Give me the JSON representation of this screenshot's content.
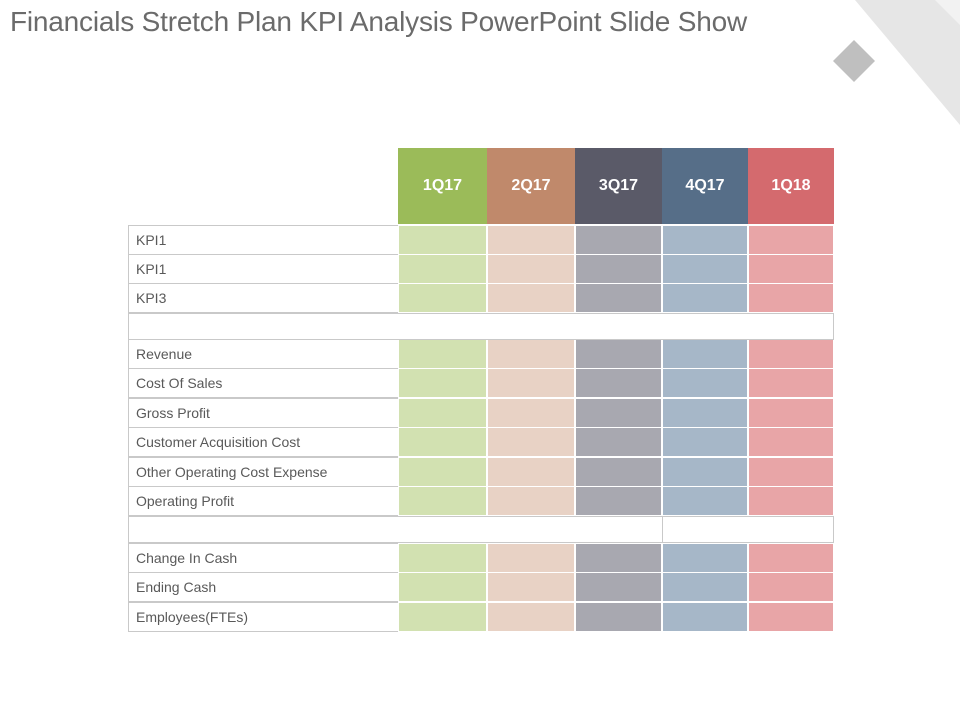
{
  "slide": {
    "title": "Financials Stretch Plan KPI Analysis PowerPoint Slide Show"
  },
  "table": {
    "columns": [
      {
        "label": "1Q17",
        "header_color": "#9bbb59",
        "cell_color": "#d2e1b1"
      },
      {
        "label": "2Q17",
        "header_color": "#c0896b",
        "cell_color": "#e8d2c5"
      },
      {
        "label": "3Q17",
        "header_color": "#5a5a68",
        "cell_color": "#a8a8b0"
      },
      {
        "label": "4Q17",
        "header_color": "#566e88",
        "cell_color": "#a6b7c8"
      },
      {
        "label": "1Q18",
        "header_color": "#d46a6e",
        "cell_color": "#e8a5a7"
      }
    ],
    "rows": [
      {
        "label": "KPI1"
      },
      {
        "label": "KPI1"
      },
      {
        "label": "KPI3"
      },
      {
        "label": "Revenue"
      },
      {
        "label": "Cost Of Sales"
      },
      {
        "label": "Gross Profit"
      },
      {
        "label": "Customer Acquisition Cost"
      },
      {
        "label": "Other Operating Cost Expense"
      },
      {
        "label": "Operating Profit"
      },
      {
        "label": "Change In Cash"
      },
      {
        "label": "Ending Cash"
      },
      {
        "label": "Employees(FTEs)"
      }
    ]
  }
}
